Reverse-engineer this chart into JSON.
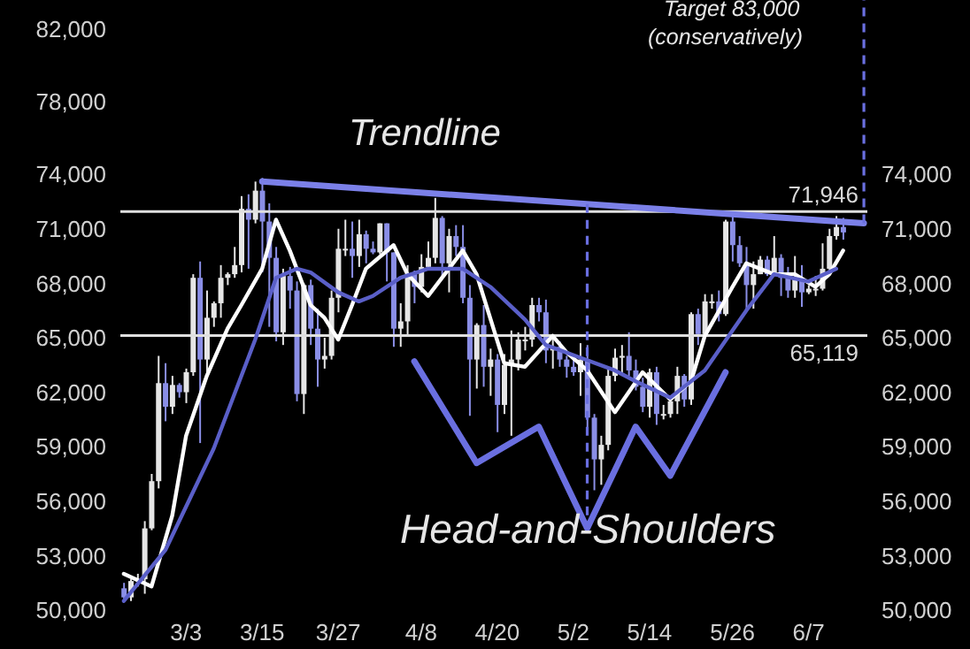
{
  "chart_data": {
    "type": "candlestick",
    "categories": [
      null,
      null,
      null,
      null,
      null,
      null,
      null,
      null,
      null,
      "3/3",
      null,
      null,
      null,
      null,
      null,
      null,
      null,
      null,
      null,
      null,
      "3/15",
      null,
      null,
      null,
      null,
      null,
      null,
      null,
      null,
      null,
      null,
      "3/27",
      null,
      null,
      null,
      null,
      null,
      null,
      null,
      null,
      null,
      null,
      null,
      "4/8",
      null,
      null,
      null,
      null,
      null,
      null,
      null,
      null,
      null,
      null,
      "4/20",
      null,
      null,
      null,
      null,
      null,
      null,
      null,
      null,
      null,
      null,
      "5/2",
      null,
      null,
      null,
      null,
      null,
      null,
      null,
      null,
      null,
      null,
      "5/14",
      null,
      null,
      null,
      null,
      null,
      null,
      null,
      null,
      null,
      null,
      null,
      "5/26",
      null,
      null,
      null,
      null,
      null,
      null,
      null,
      null,
      null,
      null,
      "6/7",
      null,
      null,
      null,
      null,
      null,
      null,
      null,
      null
    ],
    "ohlc": [
      [
        51200,
        51500,
        50500,
        50700
      ],
      [
        50700,
        51700,
        50500,
        51600
      ],
      [
        51600,
        52000,
        51300,
        51700
      ],
      [
        51700,
        54900,
        50900,
        54500
      ],
      [
        54500,
        57500,
        54400,
        57100
      ],
      [
        57100,
        64000,
        56700,
        62500
      ],
      [
        62500,
        63600,
        60400,
        61200
      ],
      [
        61200,
        62900,
        60800,
        62400
      ],
      [
        62400,
        62500,
        61700,
        62000
      ],
      [
        62000,
        63300,
        61400,
        63100
      ],
      [
        63100,
        68500,
        62900,
        68300
      ],
      [
        68300,
        69200,
        59200,
        63800
      ],
      [
        63800,
        67600,
        62900,
        66100
      ],
      [
        66100,
        67000,
        65600,
        66900
      ],
      [
        66900,
        69000,
        66100,
        68300
      ],
      [
        68300,
        68600,
        67900,
        68500
      ],
      [
        68500,
        70000,
        68300,
        69000
      ],
      [
        69000,
        72800,
        68600,
        72100
      ],
      [
        72100,
        72900,
        68800,
        71500
      ],
      [
        71500,
        73600,
        71300,
        73100
      ],
      [
        73100,
        73800,
        68600,
        71400
      ],
      [
        71400,
        72400,
        65600,
        69400
      ],
      [
        69400,
        70000,
        64800,
        65300
      ],
      [
        65300,
        68800,
        64600,
        68400
      ],
      [
        68400,
        68900,
        66600,
        67600
      ],
      [
        67600,
        68100,
        61500,
        61900
      ],
      [
        61900,
        68000,
        60800,
        67900
      ],
      [
        67900,
        68200,
        64600,
        65500
      ],
      [
        65500,
        66600,
        62300,
        63800
      ],
      [
        63800,
        65000,
        63300,
        64000
      ],
      [
        64000,
        67600,
        63800,
        67200
      ],
      [
        67200,
        71000,
        66400,
        69900
      ],
      [
        69900,
        71500,
        69500,
        69900
      ],
      [
        69900,
        71400,
        68300,
        69500
      ],
      [
        69500,
        71500,
        68900,
        70700
      ],
      [
        70700,
        70900,
        69100,
        69900
      ],
      [
        69900,
        70300,
        69600,
        69700
      ],
      [
        69700,
        71300,
        69600,
        71300
      ],
      [
        71300,
        71300,
        68100,
        69700
      ],
      [
        69700,
        69700,
        64500,
        65500
      ],
      [
        65500,
        66900,
        64500,
        65900
      ],
      [
        65900,
        69000,
        65100,
        68500
      ],
      [
        68500,
        68700,
        66900,
        67800
      ],
      [
        67800,
        69600,
        67500,
        68900
      ],
      [
        68900,
        70300,
        68800,
        69400
      ],
      [
        69400,
        72700,
        69100,
        71600
      ],
      [
        71600,
        71700,
        68200,
        69100
      ],
      [
        69100,
        71000,
        67500,
        70600
      ],
      [
        70600,
        71200,
        69500,
        70000
      ],
      [
        70000,
        71200,
        66900,
        67200
      ],
      [
        67200,
        67900,
        60700,
        63800
      ],
      [
        63800,
        65800,
        62200,
        65700
      ],
      [
        65700,
        66800,
        62300,
        63400
      ],
      [
        63400,
        64400,
        61800,
        63800
      ],
      [
        63800,
        64100,
        59800,
        61300
      ],
      [
        61300,
        64100,
        60800,
        63500
      ],
      [
        63500,
        65400,
        59600,
        63800
      ],
      [
        63800,
        65300,
        63200,
        64900
      ],
      [
        64900,
        65600,
        64300,
        64900
      ],
      [
        64900,
        67200,
        64500,
        66800
      ],
      [
        66800,
        67200,
        65900,
        66400
      ],
      [
        66400,
        67100,
        63600,
        64300
      ],
      [
        64300,
        65200,
        63300,
        64500
      ],
      [
        64500,
        64800,
        63400,
        63800
      ],
      [
        63800,
        64000,
        62800,
        63400
      ],
      [
        63400,
        64000,
        62900,
        63100
      ],
      [
        63100,
        64700,
        61800,
        63800
      ],
      [
        63800,
        64600,
        59800,
        60600
      ],
      [
        60600,
        60800,
        56600,
        58300
      ],
      [
        58300,
        59600,
        56900,
        59100
      ],
      [
        59100,
        63300,
        58800,
        62900
      ],
      [
        62900,
        64400,
        62600,
        63900
      ],
      [
        63900,
        64600,
        62900,
        64000
      ],
      [
        64000,
        65300,
        62900,
        63200
      ],
      [
        63200,
        63800,
        62100,
        62300
      ],
      [
        62300,
        62800,
        60900,
        61200
      ],
      [
        61200,
        63300,
        60600,
        63100
      ],
      [
        63100,
        63400,
        60200,
        60800
      ],
      [
        60800,
        61300,
        60500,
        60800
      ],
      [
        60800,
        61800,
        60600,
        61500
      ],
      [
        61500,
        63400,
        60800,
        62900
      ],
      [
        62900,
        63000,
        61200,
        61600
      ],
      [
        61600,
        66400,
        61300,
        66300
      ],
      [
        66300,
        66600,
        64600,
        65200
      ],
      [
        65200,
        67400,
        65100,
        67000
      ],
      [
        67000,
        67400,
        66600,
        67000
      ],
      [
        67000,
        67600,
        65900,
        66300
      ],
      [
        66300,
        71500,
        66200,
        71400
      ],
      [
        71400,
        71900,
        69200,
        70100
      ],
      [
        70100,
        70600,
        68900,
        69100
      ],
      [
        69100,
        70000,
        66600,
        67900
      ],
      [
        67900,
        69200,
        66600,
        68500
      ],
      [
        68500,
        69500,
        68500,
        69300
      ],
      [
        69300,
        69500,
        68400,
        68500
      ],
      [
        68500,
        70600,
        68500,
        69400
      ],
      [
        69400,
        69600,
        67300,
        68300
      ],
      [
        68300,
        68900,
        67200,
        67600
      ],
      [
        67600,
        69500,
        67200,
        68300
      ],
      [
        68300,
        69000,
        66700,
        67500
      ],
      [
        67500,
        67900,
        67400,
        67700
      ],
      [
        67700,
        68400,
        67300,
        67700
      ],
      [
        67700,
        70200,
        67600,
        68800
      ],
      [
        68800,
        71000,
        68600,
        70600
      ],
      [
        70600,
        71700,
        70400,
        71100
      ],
      [
        71100,
        71600,
        70400,
        70800
      ],
      null,
      null,
      null
    ],
    "colors": [
      "#8a8ee6",
      "#e6e6e6",
      "#e6e6e6",
      "#e6e6e6",
      "#e6e6e6",
      "#e6e6e6",
      "#8a8ee6",
      "#e6e6e6",
      "#8a8ee6",
      "#e6e6e6",
      "#e6e6e6",
      "#8a8ee6",
      "#e6e6e6",
      "#e6e6e6",
      "#e6e6e6",
      "#e6e6e6",
      "#e6e6e6",
      "#e6e6e6",
      "#8a8ee6",
      "#e6e6e6",
      "#8a8ee6",
      "#8a8ee6",
      "#8a8ee6",
      "#e6e6e6",
      "#8a8ee6",
      "#8a8ee6",
      "#e6e6e6",
      "#8a8ee6",
      "#8a8ee6",
      "#e6e6e6",
      "#e6e6e6",
      "#e6e6e6",
      "#e6e6e6",
      "#8a8ee6",
      "#e6e6e6",
      "#8a8ee6",
      "#8a8ee6",
      "#e6e6e6",
      "#8a8ee6",
      "#8a8ee6",
      "#e6e6e6",
      "#e6e6e6",
      "#8a8ee6",
      "#e6e6e6",
      "#e6e6e6",
      "#e6e6e6",
      "#8a8ee6",
      "#e6e6e6",
      "#8a8ee6",
      "#8a8ee6",
      "#8a8ee6",
      "#e6e6e6",
      "#8a8ee6",
      "#e6e6e6",
      "#8a8ee6",
      "#e6e6e6",
      "#e6e6e6",
      "#e6e6e6",
      "#e6e6e6",
      "#e6e6e6",
      "#8a8ee6",
      "#8a8ee6",
      "#e6e6e6",
      "#8a8ee6",
      "#8a8ee6",
      "#8a8ee6",
      "#e6e6e6",
      "#8a8ee6",
      "#8a8ee6",
      "#e6e6e6",
      "#e6e6e6",
      "#e6e6e6",
      "#e6e6e6",
      "#8a8ee6",
      "#8a8ee6",
      "#8a8ee6",
      "#e6e6e6",
      "#8a8ee6",
      "#e6e6e6",
      "#e6e6e6",
      "#e6e6e6",
      "#8a8ee6",
      "#e6e6e6",
      "#8a8ee6",
      "#e6e6e6",
      "#e6e6e6",
      "#8a8ee6",
      "#e6e6e6",
      "#8a8ee6",
      "#8a8ee6",
      "#8a8ee6",
      "#e6e6e6",
      "#e6e6e6",
      "#8a8ee6",
      "#e6e6e6",
      "#8a8ee6",
      "#8a8ee6",
      "#e6e6e6",
      "#8a8ee6",
      "#e6e6e6",
      "#e6e6e6",
      "#e6e6e6",
      "#e6e6e6",
      "#e6e6e6",
      "#8a8ee6",
      null,
      null,
      null
    ],
    "series": [
      {
        "type": "line",
        "color": "#ffffff",
        "values": [
          52000,
          null,
          null,
          null,
          51300,
          null,
          null,
          55200,
          null,
          59600,
          null,
          null,
          62900,
          null,
          null,
          65500,
          null,
          66800,
          null,
          null,
          68800,
          null,
          71500,
          null,
          69800,
          null,
          null,
          66800,
          null,
          66100,
          null,
          64900,
          null,
          66800,
          null,
          68800,
          null,
          null,
          null,
          70100,
          null,
          68500,
          null,
          null,
          67300,
          null,
          null,
          null,
          null,
          69800,
          null,
          68500,
          null,
          null,
          null,
          63600,
          null,
          null,
          63400,
          null,
          null,
          null,
          65100,
          null,
          64200,
          null,
          null,
          63200,
          null,
          null,
          null,
          60900,
          null,
          null,
          null,
          63100,
          null,
          null,
          null,
          61600,
          null,
          null,
          62600,
          null,
          65100,
          null,
          null,
          null,
          67800,
          null,
          69100,
          null,
          null,
          null,
          68500,
          null,
          null,
          68500,
          null,
          null,
          67800,
          null,
          68500,
          null,
          69800,
          null,
          null,
          null
        ]
      },
      {
        "type": "line",
        "color": "#5a5fc8",
        "values": [
          50500,
          null,
          null,
          null,
          null,
          null,
          53300,
          null,
          null,
          null,
          null,
          null,
          null,
          58900,
          null,
          null,
          null,
          null,
          null,
          64900,
          null,
          null,
          68300,
          null,
          null,
          68800,
          null,
          68600,
          null,
          null,
          null,
          67500,
          null,
          null,
          67000,
          null,
          67300,
          null,
          null,
          null,
          68300,
          null,
          null,
          null,
          68800,
          null,
          null,
          null,
          null,
          68800,
          null,
          null,
          null,
          67800,
          null,
          null,
          null,
          null,
          66000,
          null,
          null,
          64600,
          null,
          null,
          null,
          null,
          63900,
          null,
          null,
          null,
          null,
          63200,
          null,
          null,
          62600,
          null,
          null,
          null,
          null,
          61700,
          null,
          null,
          null,
          null,
          63200,
          null,
          null,
          null,
          null,
          null,
          66500,
          null,
          null,
          null,
          68500,
          null,
          null,
          null,
          null,
          68100,
          null,
          null,
          null,
          68800,
          null,
          null,
          null,
          null
        ]
      },
      {
        "type": "line",
        "color": "#7b80e8",
        "values": [
          null,
          null,
          null,
          null,
          null,
          null,
          null,
          null,
          null,
          null,
          null,
          null,
          null,
          null,
          null,
          null,
          null,
          null,
          null,
          null,
          73600,
          null,
          null,
          null,
          null,
          null,
          null,
          null,
          null,
          null,
          null,
          null,
          null,
          null,
          null,
          null,
          null,
          null,
          null,
          null,
          null,
          null,
          null,
          null,
          null,
          null,
          null,
          null,
          null,
          null,
          null,
          null,
          null,
          null,
          null,
          null,
          null,
          null,
          null,
          null,
          null,
          null,
          null,
          null,
          null,
          null,
          null,
          null,
          null,
          null,
          null,
          null,
          null,
          null,
          null,
          null,
          null,
          null,
          null,
          null,
          null,
          null,
          null,
          null,
          null,
          null,
          null,
          null,
          null,
          null,
          null,
          null,
          null,
          null,
          null,
          null,
          null,
          null,
          null,
          null,
          null,
          null,
          null,
          null,
          null,
          null,
          null,
          71300
        ]
      },
      {
        "type": "line",
        "color": "#6a6fe0",
        "values": [
          null,
          null,
          null,
          null,
          null,
          null,
          null,
          null,
          null,
          null,
          null,
          null,
          null,
          null,
          null,
          null,
          null,
          null,
          null,
          null,
          null,
          null,
          null,
          null,
          null,
          null,
          null,
          null,
          null,
          null,
          null,
          null,
          null,
          null,
          null,
          null,
          null,
          null,
          null,
          null,
          null,
          null,
          63700,
          null,
          null,
          null,
          null,
          null,
          null,
          null,
          null,
          58100,
          null,
          null,
          null,
          null,
          null,
          null,
          null,
          null,
          60100,
          null,
          null,
          null,
          null,
          null,
          null,
          54500,
          null,
          null,
          null,
          null,
          null,
          null,
          60100,
          null,
          null,
          null,
          null,
          57400,
          null,
          null,
          null,
          null,
          null,
          null,
          null,
          63100,
          null,
          null,
          null,
          null,
          null,
          null,
          null,
          null,
          null,
          null,
          null,
          null,
          null,
          null,
          null,
          null,
          null,
          null,
          null,
          null
        ]
      }
    ],
    "ylim": [
      50000,
      83600
    ],
    "yticks": [
      {
        "value": 50000,
        "label": "50,000"
      },
      {
        "value": 53000,
        "label": "53,000"
      },
      {
        "value": 56000,
        "label": "56,000"
      },
      {
        "value": 59000,
        "label": "59,000"
      },
      {
        "value": 62000,
        "label": "62,000"
      },
      {
        "value": 65000,
        "label": "65,000"
      },
      {
        "value": 68000,
        "label": "68,000"
      },
      {
        "value": 71000,
        "label": "71,000"
      },
      {
        "value": 74000,
        "label": "74,000"
      },
      {
        "value": 78000,
        "label": "78,000"
      },
      {
        "value": 82000,
        "label": "82,000"
      }
    ],
    "y2lim": [
      50000,
      83600
    ],
    "y2ticks": [
      {
        "value": 50000,
        "label": "50,000"
      },
      {
        "value": 53000,
        "label": "53,000"
      },
      {
        "value": 56000,
        "label": "56,000"
      },
      {
        "value": 59000,
        "label": "59,000"
      },
      {
        "value": 62000,
        "label": "62,000"
      },
      {
        "value": 65000,
        "label": "65,000"
      },
      {
        "value": 68000,
        "label": "68,000"
      },
      {
        "value": 71000,
        "label": "71,000"
      },
      {
        "value": 74000,
        "label": "74,000"
      }
    ],
    "ref_lines": [
      {
        "axis": "y",
        "value": 71946,
        "label": "71,946",
        "color": "#e0e0e0"
      },
      {
        "axis": "y",
        "value": 65119,
        "label": "65,119",
        "color": "#e0e0e0"
      }
    ],
    "annotations": [
      "Trendline",
      "Head-and-Shoulders",
      "Target 83,000",
      "(conservatively)"
    ]
  }
}
